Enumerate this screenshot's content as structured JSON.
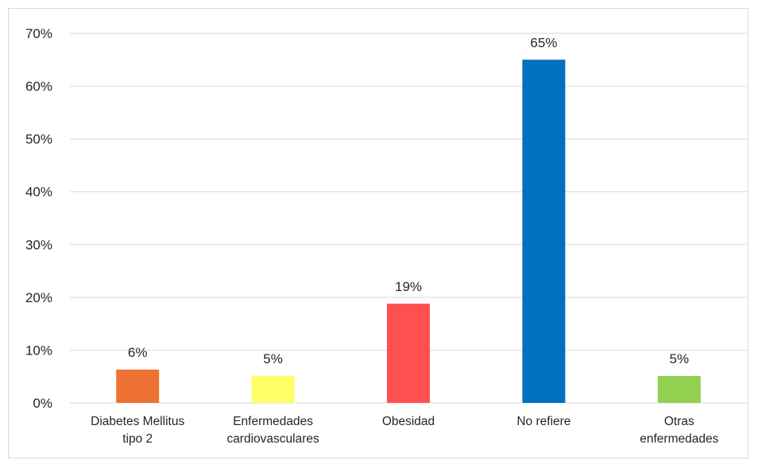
{
  "chart_data": {
    "type": "bar",
    "title": "",
    "xlabel": "",
    "ylabel": "",
    "categories": [
      [
        "Diabetes Mellitus",
        "tipo 2"
      ],
      [
        "Enfermedades",
        "cardiovasculares"
      ],
      [
        "Obesidad"
      ],
      [
        "No refiere"
      ],
      [
        "Otras",
        "enfermedades"
      ]
    ],
    "values": [
      6.3,
      5.1,
      18.8,
      65,
      5.1
    ],
    "data_labels": [
      "6%",
      "5%",
      "19%",
      "65%",
      "5%"
    ],
    "colors": [
      "#ED7233",
      "#FFFF66",
      "#FF5050",
      "#0070C0",
      "#92D050"
    ],
    "ylim": [
      0,
      70
    ],
    "yticks": [
      0,
      10,
      20,
      30,
      40,
      50,
      60,
      70
    ],
    "ytick_labels": [
      "0%",
      "10%",
      "20%",
      "30%",
      "40%",
      "50%",
      "60%",
      "70%"
    ],
    "grid": true,
    "gridline_color": "#d9d9d9",
    "legend": "none"
  }
}
